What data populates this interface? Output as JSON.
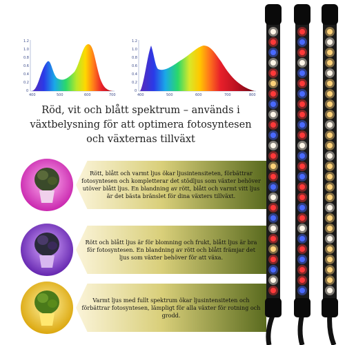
{
  "charts": {
    "left": {
      "y_ticks": [
        "1.2",
        "1.0",
        "0.8",
        "0.6",
        "0.4",
        "0.2",
        "0"
      ],
      "x_ticks": [
        "400",
        "500",
        "600",
        "700"
      ]
    },
    "right": {
      "y_ticks": [
        "1.2",
        "1.0",
        "0.8",
        "0.6",
        "0.4",
        "0.2",
        "0"
      ],
      "x_ticks": [
        "400",
        "500",
        "600",
        "700",
        "800"
      ]
    }
  },
  "headline": "Röd, vit och blått spektrum – används i växtbelysning för att optimera fotosyntesen och växternas tillväxt",
  "rows": [
    {
      "text": "Rött, blått och varmt ljus ökar ljusintensiteten, förbättrar fotosyntesen och kompletterar det stödljus som växter behöver utöver blått ljus. En blandning av rött, blått och varmt vitt ljus är det bästa bränslet för dina växters tillväxt.",
      "glow": "#e85ad8"
    },
    {
      "text": "Rött och blått ljus är för blomning och frukt, blått ljus är bra för fotosyntesen. En blandning av rött och blått främjar det ljus som växter behöver för att växa.",
      "glow": "#9a4ad8"
    },
    {
      "text": "Varmt ljus med fullt spektrum ökar ljusintensiteten och förbättrar fotosyntesen, lämpligt för alla växter för rotning och grodd.",
      "glow": "#f0c020"
    }
  ],
  "lamp_colors": {
    "red": "#ff3a3a",
    "blue": "#4a6aff",
    "warm": "#ffd27a",
    "white": "#fff6e8"
  }
}
